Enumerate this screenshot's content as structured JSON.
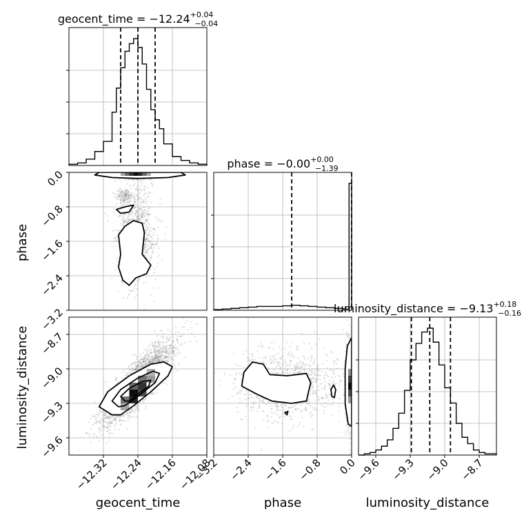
{
  "chart_data": {
    "type": "corner",
    "parameters": [
      {
        "name": "geocent_time",
        "label": "geocent_time",
        "title": "geocent_time = −12.24",
        "median": -12.24,
        "sup": "+0.04",
        "sub": "−0.04",
        "quantiles": [
          -12.28,
          -12.24,
          -12.2
        ],
        "range": [
          -12.4,
          -12.08
        ],
        "ticks": [
          {
            "v": -12.32,
            "label": "−12.32"
          },
          {
            "v": -12.24,
            "label": "−12.24"
          },
          {
            "v": -12.16,
            "label": "−12.16"
          },
          {
            "v": -12.08,
            "label": "−12.08"
          }
        ],
        "hist": {
          "edges": [
            -12.4,
            -12.38,
            -12.36,
            -12.34,
            -12.32,
            -12.3,
            -12.29,
            -12.28,
            -12.27,
            -12.26,
            -12.25,
            -12.24,
            -12.23,
            -12.22,
            -12.21,
            -12.2,
            -12.19,
            -12.18,
            -12.16,
            -12.14,
            -12.12,
            -12.1,
            -12.08
          ],
          "counts": [
            0.01,
            0.02,
            0.05,
            0.11,
            0.19,
            0.42,
            0.61,
            0.77,
            0.9,
            0.96,
            1.0,
            0.93,
            0.8,
            0.6,
            0.44,
            0.36,
            0.29,
            0.17,
            0.07,
            0.04,
            0.02,
            0.01
          ]
        }
      },
      {
        "name": "phase",
        "label": "phase",
        "title": "phase = −0.00",
        "median": 0.0,
        "sup": "+0.00",
        "sub": "−1.39",
        "quantiles": [
          -1.39,
          0.0
        ],
        "range": [
          -3.2,
          0.0
        ],
        "ticks": [
          {
            "v": -3.2,
            "label": "−3.2"
          },
          {
            "v": -2.4,
            "label": "−2.4"
          },
          {
            "v": -1.6,
            "label": "−1.6"
          },
          {
            "v": -0.8,
            "label": "−0.8"
          },
          {
            "v": 0.0,
            "label": "0.0"
          }
        ],
        "hist": {
          "edges": [
            -3.2,
            -3.0,
            -2.8,
            -2.6,
            -2.4,
            -2.2,
            -2.0,
            -1.8,
            -1.6,
            -1.4,
            -1.2,
            -1.0,
            -0.8,
            -0.6,
            -0.4,
            -0.2,
            -0.06,
            0.0
          ],
          "counts": [
            0.005,
            0.01,
            0.015,
            0.02,
            0.025,
            0.03,
            0.03,
            0.03,
            0.035,
            0.04,
            0.035,
            0.03,
            0.025,
            0.02,
            0.015,
            0.01,
            1.0
          ]
        }
      },
      {
        "name": "luminosity_distance",
        "label": "luminosity_distance",
        "title": "luminosity_distance = −9.13",
        "median": -9.13,
        "sup": "+0.18",
        "sub": "−0.16",
        "quantiles": [
          -9.29,
          -9.13,
          -8.95
        ],
        "range": [
          -9.75,
          -8.55
        ],
        "ticks": [
          {
            "v": -9.6,
            "label": "−9.6"
          },
          {
            "v": -9.3,
            "label": "−9.3"
          },
          {
            "v": -9.0,
            "label": "−9.0"
          },
          {
            "v": -8.7,
            "label": "−8.7"
          }
        ],
        "hist": {
          "edges": [
            -9.75,
            -9.7,
            -9.65,
            -9.6,
            -9.55,
            -9.5,
            -9.45,
            -9.4,
            -9.35,
            -9.3,
            -9.25,
            -9.2,
            -9.15,
            -9.1,
            -9.05,
            -9.0,
            -8.95,
            -8.9,
            -8.85,
            -8.8,
            -8.75,
            -8.7,
            -8.65,
            -8.6,
            -8.55
          ],
          "counts": [
            0.0,
            0.01,
            0.02,
            0.04,
            0.07,
            0.12,
            0.21,
            0.33,
            0.51,
            0.75,
            0.88,
            0.97,
            1.0,
            0.89,
            0.71,
            0.53,
            0.41,
            0.25,
            0.14,
            0.09,
            0.04,
            0.02,
            0.01,
            0.01
          ]
        }
      }
    ],
    "panels_2d": [
      {
        "x": "geocent_time",
        "y": "phase",
        "seed": 11,
        "n": 2600,
        "blobs": [
          {
            "cx": -12.24,
            "cy": -0.03,
            "sx": 0.025,
            "sy": 0.05,
            "w": 0.55
          },
          {
            "cx": -12.245,
            "cy": -1.5,
            "sx": 0.022,
            "sy": 0.55,
            "w": 0.4
          },
          {
            "cx": -12.27,
            "cy": -0.55,
            "sx": 0.01,
            "sy": 0.08,
            "w": 0.05
          }
        ],
        "density_cells": [
          {
            "x0": -12.28,
            "x1": -12.27,
            "y0": -0.08,
            "y1": 0.0,
            "level": 0.35
          },
          {
            "x0": -12.27,
            "x1": -12.26,
            "y0": -0.08,
            "y1": 0.0,
            "level": 0.6
          },
          {
            "x0": -12.26,
            "x1": -12.25,
            "y0": -0.08,
            "y1": 0.0,
            "level": 0.8
          },
          {
            "x0": -12.25,
            "x1": -12.24,
            "y0": -0.08,
            "y1": 0.0,
            "level": 0.95
          },
          {
            "x0": -12.24,
            "x1": -12.23,
            "y0": -0.08,
            "y1": 0.0,
            "level": 0.85
          },
          {
            "x0": -12.23,
            "x1": -12.22,
            "y0": -0.08,
            "y1": 0.0,
            "level": 0.6
          },
          {
            "x0": -12.22,
            "x1": -12.21,
            "y0": -0.08,
            "y1": 0.0,
            "level": 0.35
          }
        ],
        "contours": [
          [
            [
              -12.33,
              0.0
            ],
            [
              -12.34,
              -0.06
            ],
            [
              -12.3,
              -0.12
            ],
            [
              -12.24,
              -0.14
            ],
            [
              -12.17,
              -0.12
            ],
            [
              -12.13,
              -0.06
            ],
            [
              -12.14,
              0.0
            ]
          ],
          [
            [
              -12.27,
              -0.8
            ],
            [
              -12.25,
              -0.76
            ],
            [
              -12.26,
              -0.92
            ],
            [
              -12.28,
              -0.95
            ],
            [
              -12.29,
              -0.86
            ]
          ],
          [
            [
              -12.285,
              -1.45
            ],
            [
              -12.27,
              -1.25
            ],
            [
              -12.25,
              -1.12
            ],
            [
              -12.23,
              -1.18
            ],
            [
              -12.225,
              -1.4
            ],
            [
              -12.23,
              -1.9
            ],
            [
              -12.21,
              -2.15
            ],
            [
              -12.22,
              -2.35
            ],
            [
              -12.245,
              -2.45
            ],
            [
              -12.26,
              -2.62
            ],
            [
              -12.275,
              -2.5
            ],
            [
              -12.285,
              -2.2
            ],
            [
              -12.28,
              -1.9
            ]
          ]
        ]
      },
      {
        "x": "geocent_time",
        "y": "luminosity_distance",
        "seed": 23,
        "n": 3000,
        "corr": 0.85,
        "blobs": [
          {
            "cx": -12.24,
            "cy": -9.13,
            "sx": 0.04,
            "sy": 0.17,
            "w": 1.0
          }
        ],
        "density_cells": [
          {
            "x0": -12.28,
            "x1": -12.26,
            "y0": -9.36,
            "y1": -9.3,
            "level": 0.35
          },
          {
            "x0": -12.26,
            "x1": -12.24,
            "y0": -9.3,
            "y1": -9.24,
            "level": 0.85
          },
          {
            "x0": -12.28,
            "x1": -12.26,
            "y0": -9.3,
            "y1": -9.24,
            "level": 0.55
          },
          {
            "x0": -12.26,
            "x1": -12.24,
            "y0": -9.24,
            "y1": -9.18,
            "level": 0.95
          },
          {
            "x0": -12.24,
            "x1": -12.22,
            "y0": -9.24,
            "y1": -9.18,
            "level": 0.7
          },
          {
            "x0": -12.26,
            "x1": -12.24,
            "y0": -9.18,
            "y1": -9.12,
            "level": 0.6
          },
          {
            "x0": -12.24,
            "x1": -12.22,
            "y0": -9.18,
            "y1": -9.12,
            "level": 0.8
          },
          {
            "x0": -12.24,
            "x1": -12.22,
            "y0": -9.12,
            "y1": -9.06,
            "level": 0.55
          },
          {
            "x0": -12.22,
            "x1": -12.2,
            "y0": -9.12,
            "y1": -9.06,
            "level": 0.4
          },
          {
            "x0": -12.22,
            "x1": -12.2,
            "y0": -9.06,
            "y1": -9.0,
            "level": 0.3
          }
        ],
        "contours": [
          [
            [
              -12.3,
              -9.4
            ],
            [
              -12.33,
              -9.33
            ],
            [
              -12.31,
              -9.2
            ],
            [
              -12.26,
              -9.06
            ],
            [
              -12.21,
              -8.96
            ],
            [
              -12.18,
              -8.94
            ],
            [
              -12.16,
              -8.98
            ],
            [
              -12.17,
              -9.06
            ],
            [
              -12.21,
              -9.2
            ],
            [
              -12.25,
              -9.32
            ],
            [
              -12.28,
              -9.4
            ]
          ],
          [
            [
              -12.285,
              -9.33
            ],
            [
              -12.3,
              -9.28
            ],
            [
              -12.28,
              -9.18
            ],
            [
              -12.24,
              -9.08
            ],
            [
              -12.205,
              -9.02
            ],
            [
              -12.19,
              -9.04
            ],
            [
              -12.2,
              -9.12
            ],
            [
              -12.24,
              -9.24
            ],
            [
              -12.27,
              -9.32
            ]
          ],
          [
            [
              -12.27,
              -9.28
            ],
            [
              -12.28,
              -9.24
            ],
            [
              -12.26,
              -9.17
            ],
            [
              -12.23,
              -9.11
            ],
            [
              -12.21,
              -9.1
            ],
            [
              -12.215,
              -9.15
            ],
            [
              -12.24,
              -9.22
            ],
            [
              -12.26,
              -9.28
            ]
          ]
        ]
      },
      {
        "x": "phase",
        "y": "luminosity_distance",
        "seed": 37,
        "n": 2600,
        "blobs": [
          {
            "cx": -0.02,
            "cy": -9.13,
            "sx": 0.05,
            "sy": 0.17,
            "w": 0.6
          },
          {
            "cx": -1.5,
            "cy": -9.15,
            "sx": 0.6,
            "sy": 0.15,
            "w": 0.4
          }
        ],
        "density_cells": [
          {
            "x0": -0.08,
            "x1": 0.0,
            "y0": -9.3,
            "y1": -9.24,
            "level": 0.4
          },
          {
            "x0": -0.08,
            "x1": 0.0,
            "y0": -9.24,
            "y1": -9.18,
            "level": 0.7
          },
          {
            "x0": -0.08,
            "x1": 0.0,
            "y0": -9.18,
            "y1": -9.12,
            "level": 0.95
          },
          {
            "x0": -0.08,
            "x1": 0.0,
            "y0": -9.12,
            "y1": -9.06,
            "level": 0.75
          },
          {
            "x0": -0.08,
            "x1": 0.0,
            "y0": -9.06,
            "y1": -9.0,
            "level": 0.45
          }
        ],
        "contours": [
          [
            [
              0.0,
              -8.73
            ],
            [
              -0.1,
              -8.8
            ],
            [
              -0.15,
              -9.0
            ],
            [
              -0.15,
              -9.3
            ],
            [
              -0.08,
              -9.48
            ],
            [
              0.0,
              -9.5
            ]
          ],
          [
            [
              -2.5,
              -9.03
            ],
            [
              -2.3,
              -8.94
            ],
            [
              -2.05,
              -8.96
            ],
            [
              -1.9,
              -9.05
            ],
            [
              -1.5,
              -9.06
            ],
            [
              -1.05,
              -9.04
            ],
            [
              -0.95,
              -9.12
            ],
            [
              -1.0,
              -9.2
            ],
            [
              -1.05,
              -9.28
            ],
            [
              -1.4,
              -9.3
            ],
            [
              -1.85,
              -9.28
            ],
            [
              -2.2,
              -9.22
            ],
            [
              -2.55,
              -9.15
            ]
          ],
          [
            [
              -0.48,
              -9.18
            ],
            [
              -0.42,
              -9.14
            ],
            [
              -0.37,
              -9.18
            ],
            [
              -0.4,
              -9.25
            ],
            [
              -0.46,
              -9.24
            ]
          ],
          [
            [
              -1.55,
              -9.38
            ],
            [
              -1.48,
              -9.37
            ],
            [
              -1.5,
              -9.4
            ]
          ]
        ]
      }
    ]
  }
}
